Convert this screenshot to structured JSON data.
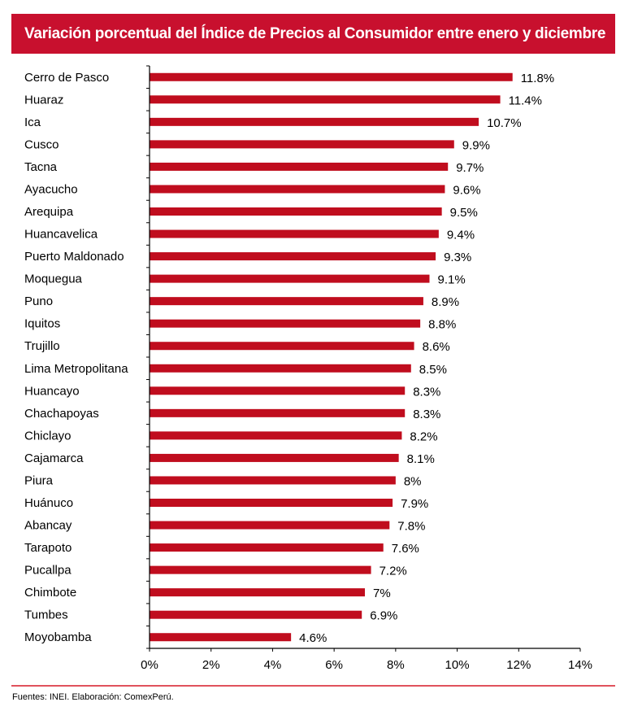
{
  "chart_data": {
    "type": "bar",
    "orientation": "horizontal",
    "title": "Variación porcentual del Índice de Precios al Consumidor entre enero y diciembre",
    "categories": [
      "Cerro de Pasco",
      "Huaraz",
      "Ica",
      "Cusco",
      "Tacna",
      "Ayacucho",
      "Arequipa",
      "Huancavelica",
      "Puerto Maldonado",
      "Moquegua",
      "Puno",
      "Iquitos",
      "Trujillo",
      "Lima Metropolitana",
      "Huancayo",
      "Chachapoyas",
      "Chiclayo",
      "Cajamarca",
      "Piura",
      "Huánuco",
      "Abancay",
      "Tarapoto",
      "Pucallpa",
      "Chimbote",
      "Tumbes",
      "Moyobamba"
    ],
    "values": [
      11.8,
      11.4,
      10.7,
      9.9,
      9.7,
      9.6,
      9.5,
      9.4,
      9.3,
      9.1,
      8.9,
      8.8,
      8.6,
      8.5,
      8.3,
      8.3,
      8.2,
      8.1,
      8,
      7.9,
      7.8,
      7.6,
      7.2,
      7,
      6.9,
      4.6
    ],
    "data_labels": [
      "11.8%",
      "11.4%",
      "10.7%",
      "9.9%",
      "9.7%",
      "9.6%",
      "9.5%",
      "9.4%",
      "9.3%",
      "9.1%",
      "8.9%",
      "8.8%",
      "8.6%",
      "8.5%",
      "8.3%",
      "8.3%",
      "8.2%",
      "8.1%",
      "8%",
      "7.9%",
      "7.8%",
      "7.6%",
      "7.2%",
      "7%",
      "6.9%",
      "4.6%"
    ],
    "xlim": [
      0,
      14
    ],
    "x_ticks": [
      "0%",
      "2%",
      "4%",
      "6%",
      "8%",
      "10%",
      "12%",
      "14%"
    ],
    "x_tick_values": [
      0,
      2,
      4,
      6,
      8,
      10,
      12,
      14
    ],
    "xlabel": "",
    "ylabel": "",
    "grid": false,
    "bar_color": "#c00d1e"
  },
  "footer": "Fuentes: INEI. Elaboración: ComexPerú."
}
